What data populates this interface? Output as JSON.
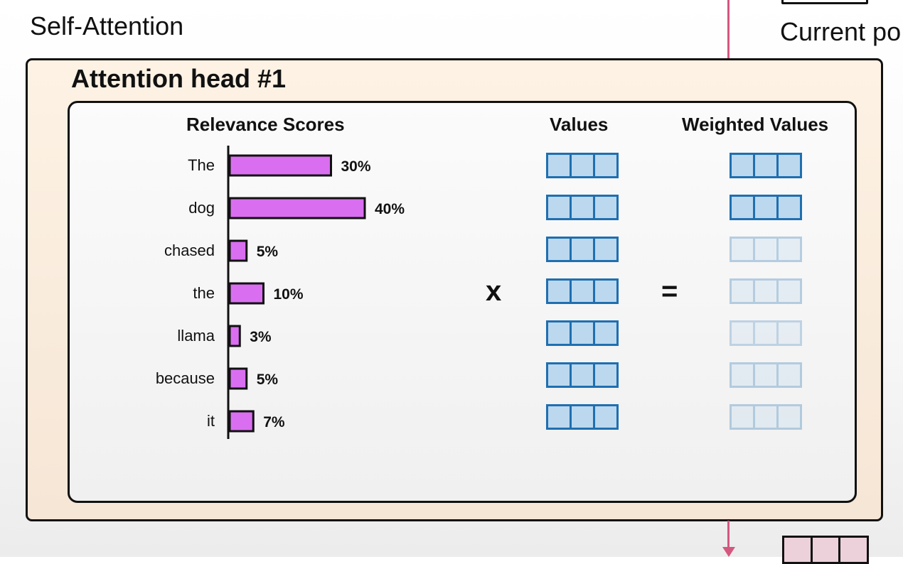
{
  "page": {
    "section_title": "Self-Attention",
    "corner_label": "Current po"
  },
  "head": {
    "title": "Attention head #1",
    "headers": {
      "relevance": "Relevance Scores",
      "values": "Values",
      "weighted": "Weighted Values"
    },
    "operators": {
      "multiply": "x",
      "equals": "="
    }
  },
  "colors": {
    "bar_fill": "#d96ff0",
    "value_border": "#1f6fb0",
    "value_fill": "#bcd8ee",
    "arrow": "#d4577f",
    "head_bg": "#fbeedd"
  },
  "chart_data": {
    "type": "bar",
    "orientation": "horizontal",
    "title": "Relevance Scores",
    "categories": [
      "The",
      "dog",
      "chased",
      "the",
      "llama",
      "because",
      "it"
    ],
    "values": [
      30,
      40,
      5,
      10,
      3,
      5,
      7
    ],
    "labels": [
      "30%",
      "40%",
      "5%",
      "10%",
      "3%",
      "5%",
      "7%"
    ],
    "value_unit": "%"
  },
  "weighted_values": {
    "opacity": [
      1.0,
      1.0,
      0.3,
      0.3,
      0.25,
      0.3,
      0.3
    ]
  }
}
